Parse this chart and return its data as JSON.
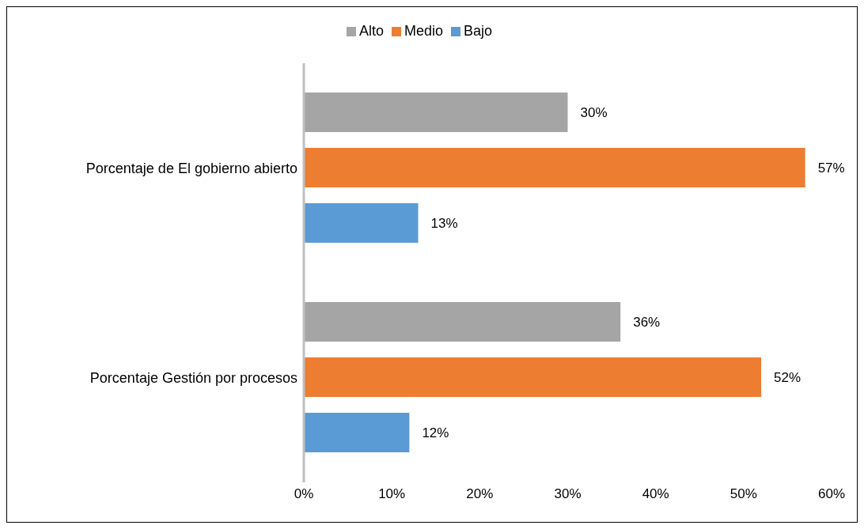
{
  "chart_data": {
    "type": "bar",
    "orientation": "horizontal",
    "categories": [
      "Porcentaje de  El gobierno abierto",
      "Porcentaje Gestión por procesos"
    ],
    "series": [
      {
        "name": "Alto",
        "color": "#a5a5a5",
        "values": [
          30,
          36
        ],
        "value_labels": [
          "30%",
          "36%"
        ]
      },
      {
        "name": "Medio",
        "color": "#ed7d31",
        "values": [
          57,
          52
        ],
        "value_labels": [
          "57%",
          "52%"
        ]
      },
      {
        "name": "Bajo",
        "color": "#5b9bd5",
        "values": [
          13,
          12
        ],
        "value_labels": [
          "13%",
          "12%"
        ]
      }
    ],
    "xlim": [
      0,
      60
    ],
    "xticks": [
      {
        "value": 0,
        "label": "0%"
      },
      {
        "value": 10,
        "label": "10%"
      },
      {
        "value": 20,
        "label": "20%"
      },
      {
        "value": 30,
        "label": "30%"
      },
      {
        "value": 40,
        "label": "40%"
      },
      {
        "value": 50,
        "label": "50%"
      },
      {
        "value": 60,
        "label": "60%"
      }
    ],
    "grid": false,
    "legend": "top"
  }
}
